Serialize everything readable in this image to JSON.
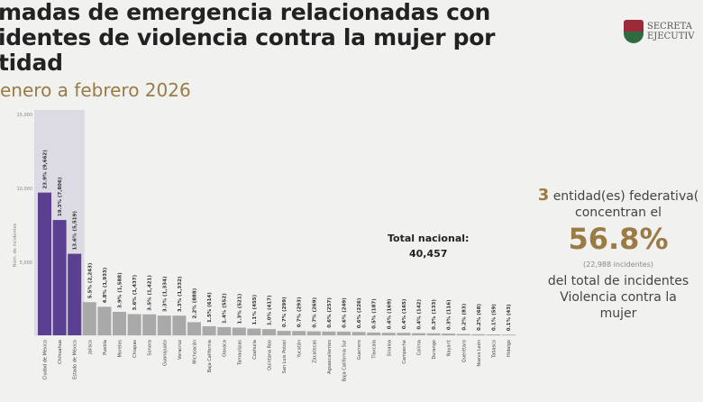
{
  "header": {
    "title": "madas de emergencia relacionadas con\nidentes de violencia contra la mujer por\ntidad",
    "subtitle": "enero a febrero 2026",
    "logo_text": "SECRETA\nEJECUTIV"
  },
  "total": {
    "label": "Total nacional:",
    "value": "40,457"
  },
  "summary": {
    "count": "3",
    "line1": "entidad(es)  federativa(",
    "line2": "concentran el",
    "percent": "56.8%",
    "incidents": "(22,988  incidentes)",
    "line3": "del total  de incidentes",
    "line4": "Violencia  contra la",
    "line5": "mujer"
  },
  "colors": {
    "highlight": "#5b3f91",
    "other": "#a9a9a9",
    "band": "#dcdbe3",
    "accent": "#9a7b45"
  },
  "chart_data": {
    "type": "bar",
    "ylabel": "Núm. de incidentes",
    "ylim": [
      0,
      15500
    ],
    "yticks": [
      5000,
      10000,
      15000
    ],
    "ytick_labels": [
      "5,000",
      "10,000",
      "15,000"
    ],
    "highlighted_count": 3,
    "categories": [
      "Ciudad de México",
      "Chihuahua",
      "Estado de México",
      "Jalisco",
      "Puebla",
      "Morelos",
      "Chiapas",
      "Sonora",
      "Guanajuato",
      "Veracruz",
      "Michoacán",
      "Baja California",
      "Oaxaca",
      "Tamaulipas",
      "Coahuila",
      "Quintana Roo",
      "San Luis Potosí",
      "Yucatán",
      "Zacatecas",
      "Aguascalientes",
      "Baja California Sur",
      "Guerrero",
      "Tlaxcala",
      "Sinaloa",
      "Campeche",
      "Colima",
      "Durango",
      "Nayarit",
      "Querétaro",
      "Nuevo León",
      "Tabasco",
      "Hidalgo"
    ],
    "values": [
      9662,
      7806,
      5519,
      2243,
      1933,
      1588,
      1437,
      1421,
      1334,
      1332,
      888,
      614,
      552,
      521,
      455,
      417,
      299,
      293,
      269,
      257,
      249,
      226,
      187,
      169,
      165,
      142,
      133,
      116,
      83,
      68,
      59,
      43
    ],
    "data_labels": [
      "23.9% (9,662)",
      "19.3% (7,806)",
      "13.6% (5,519)",
      "5.5% (2,243)",
      "4.8% (1,933)",
      "3.9% (1,588)",
      "3.6% (1,437)",
      "3.5% (1,421)",
      "3.3% (1,334)",
      "3.3% (1,332)",
      "2.2% (888)",
      "1.5% (614)",
      "1.4% (552)",
      "1.3% (521)",
      "1.1% (455)",
      "1.0% (417)",
      "0.7% (299)",
      "0.7% (293)",
      "0.7% (269)",
      "0.6% (257)",
      "0.6% (249)",
      "0.6% (226)",
      "0.5% (187)",
      "0.4% (169)",
      "0.4% (165)",
      "0.4% (142)",
      "0.3% (133)",
      "0.3% (116)",
      "0.2% (83)",
      "0.2% (68)",
      "0.1% (59)",
      "0.1% (43)"
    ]
  }
}
